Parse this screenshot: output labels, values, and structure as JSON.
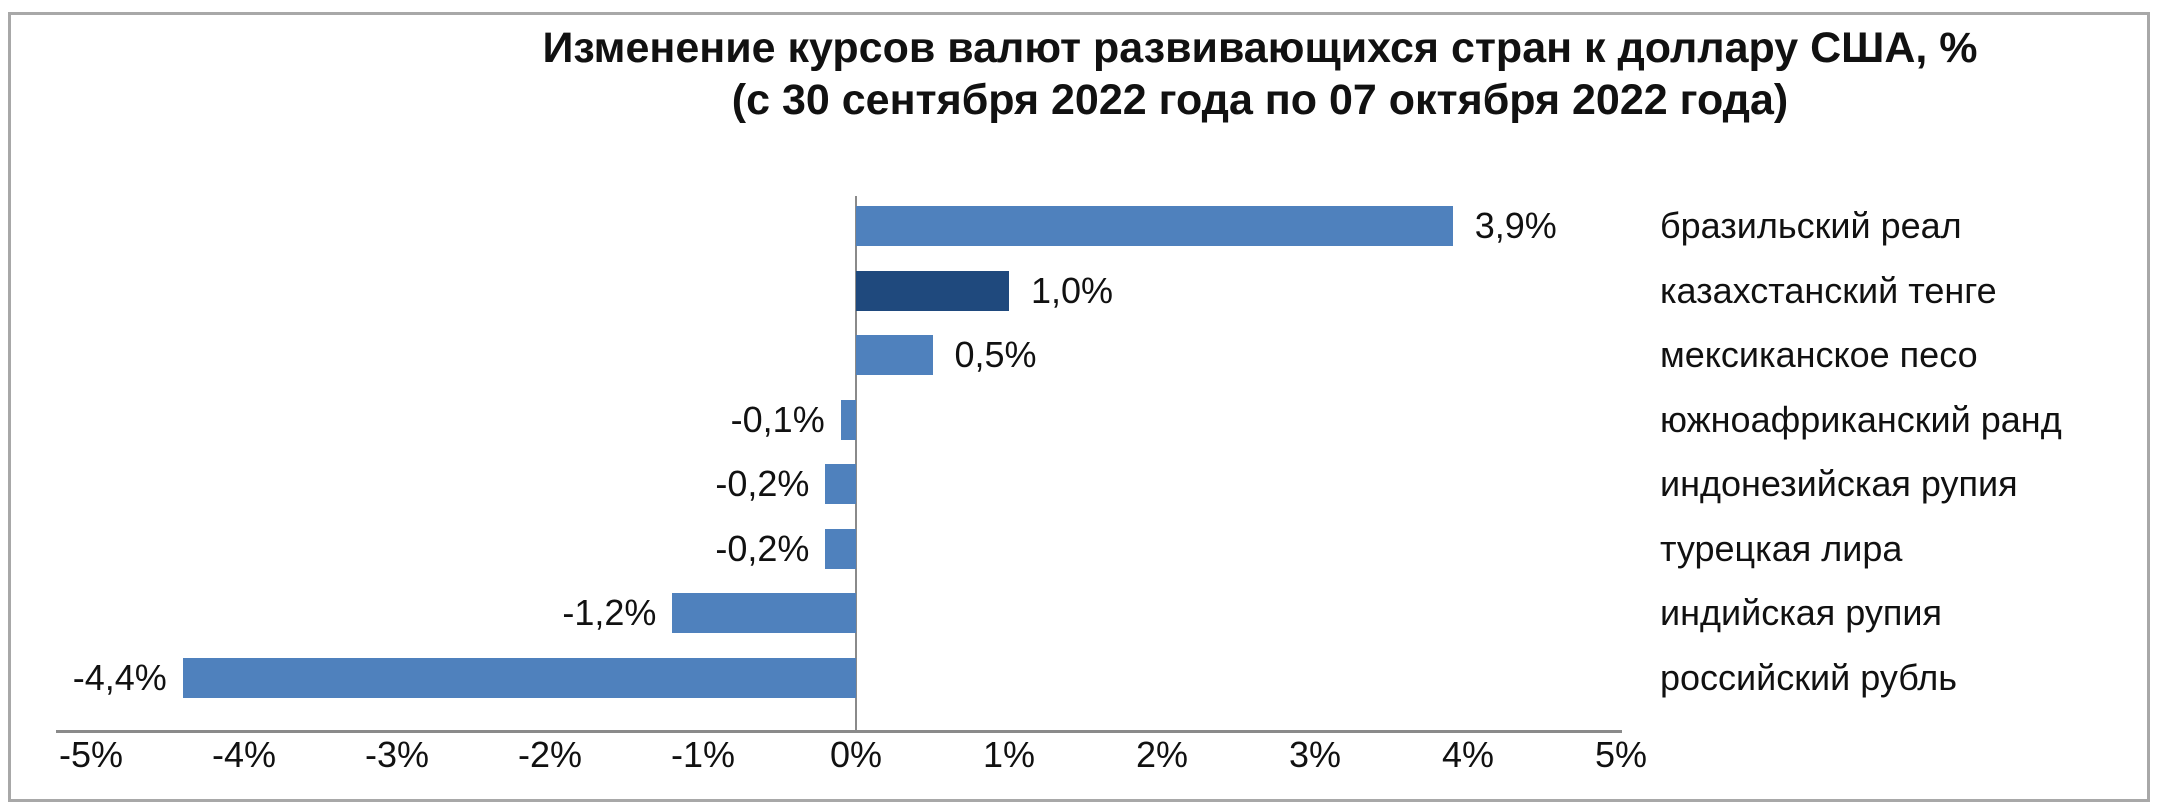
{
  "chart_data": {
    "type": "bar",
    "orientation": "horizontal",
    "title": "Изменение курсов валют развивающихся стран к доллару США, %",
    "subtitle": "(с 30 сентября 2022 года по 07 октября 2022 года)",
    "categories": [
      "бразильский реал",
      "казахстанский тенге",
      "мексиканское песо",
      "южноафриканский ранд",
      "индонезийская рупия",
      "турецкая лира",
      "индийская рупия",
      "российский рубль"
    ],
    "values": [
      3.9,
      1.0,
      0.5,
      -0.1,
      -0.2,
      -0.2,
      -1.2,
      -4.4
    ],
    "value_labels": [
      "3,9%",
      "1,0%",
      "0,5%",
      "-0,1%",
      "-0,2%",
      "-0,2%",
      "-1,2%",
      "-4,4%"
    ],
    "xlim": [
      -5,
      5
    ],
    "x_ticks": [
      "-5%",
      "-4%",
      "-3%",
      "-2%",
      "-1%",
      "0%",
      "1%",
      "2%",
      "3%",
      "4%",
      "5%"
    ],
    "grid": false,
    "legend": "none",
    "colors": {
      "default": "#4f81bd",
      "highlight": "#1f497d"
    },
    "highlight_index": 1
  }
}
